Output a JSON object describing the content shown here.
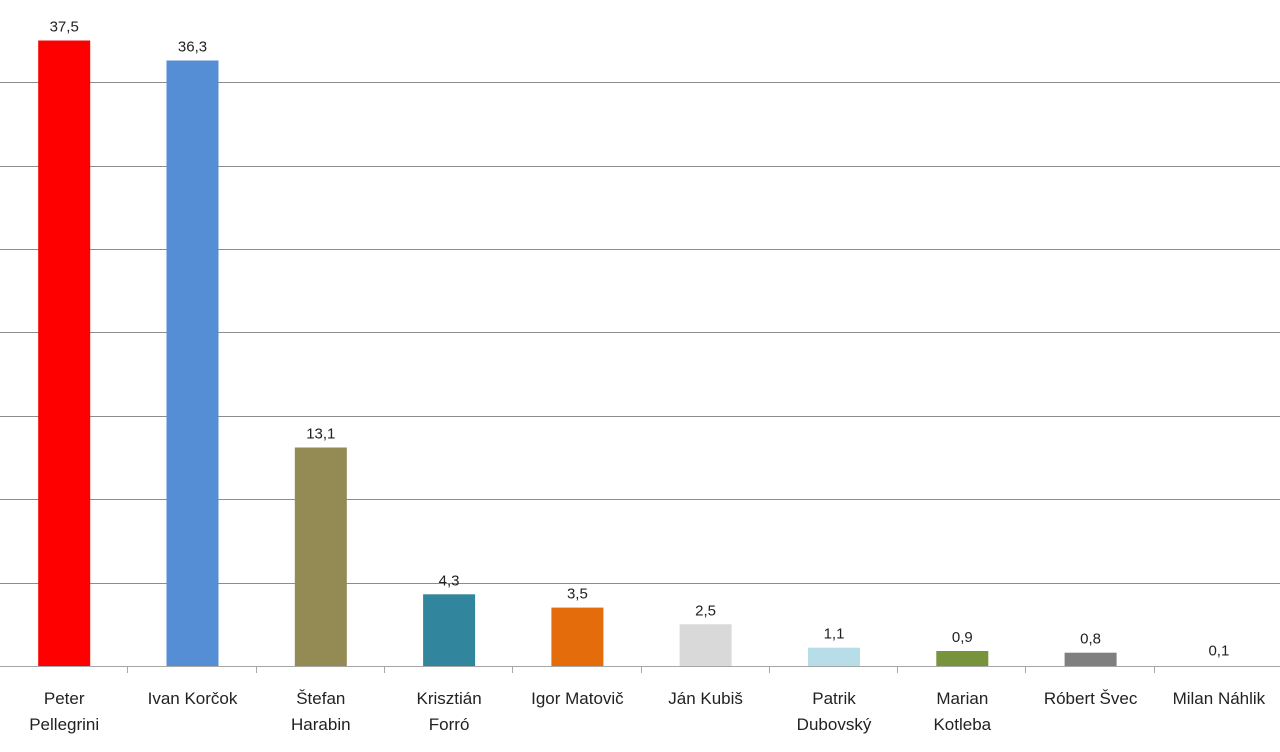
{
  "chart_data": {
    "type": "bar",
    "categories": [
      [
        "Peter",
        "Pellegrini"
      ],
      [
        "Ivan Korčok"
      ],
      [
        "Štefan",
        "Harabin"
      ],
      [
        "Krisztián",
        "Forró"
      ],
      [
        "Igor Matovič"
      ],
      [
        "Ján Kubiš"
      ],
      [
        "Patrik",
        "Dubovský"
      ],
      [
        "Marian",
        "Kotleba"
      ],
      [
        "Róbert Švec"
      ],
      [
        "Milan Náhlik"
      ]
    ],
    "values": [
      37.5,
      36.3,
      13.1,
      4.3,
      3.5,
      2.5,
      1.1,
      0.9,
      0.8,
      0.1
    ],
    "value_labels": [
      "37,5",
      "36,3",
      "13,1",
      "4,3",
      "3,5",
      "2,5",
      "1,1",
      "0,9",
      "0,8",
      "0,1"
    ],
    "colors": [
      "#ff0000",
      "#558ed5",
      "#948a54",
      "#31859c",
      "#e46c0a",
      "#d9d9d9",
      "#b7dee8",
      "#77933c",
      "#7f7f7f",
      "#ffffff"
    ],
    "ylim": [
      0,
      35
    ],
    "gridline_step": 5,
    "grid": true,
    "legend": "none"
  }
}
